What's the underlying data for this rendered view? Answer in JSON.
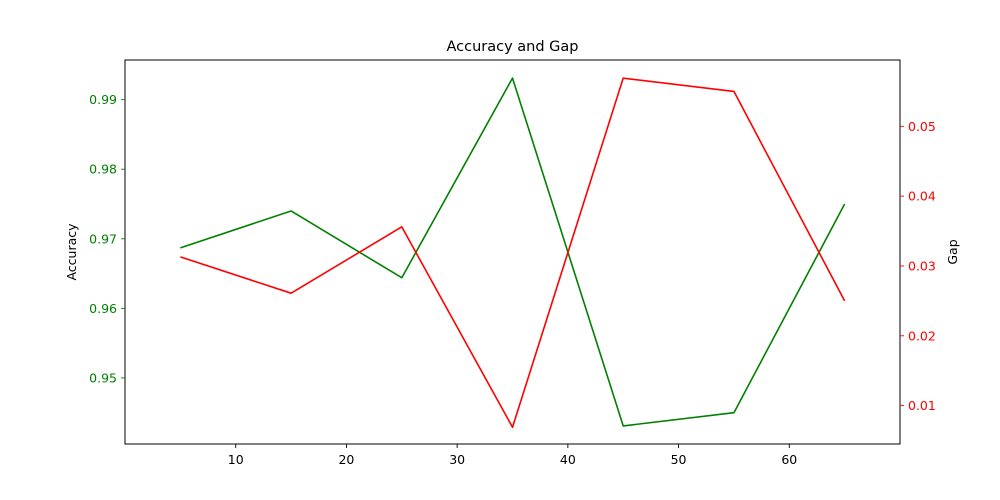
{
  "chart_data": {
    "type": "line",
    "title": "Accuracy and Gap",
    "xlabel": "",
    "x": [
      5,
      15,
      25,
      35,
      45,
      55,
      65
    ],
    "xlim": [
      0,
      70
    ],
    "xticks": [
      10,
      20,
      30,
      40,
      50,
      60
    ],
    "xtick_labels": [
      "10",
      "20",
      "30",
      "40",
      "50",
      "60"
    ],
    "grid": false,
    "legend": "none",
    "y_left": {
      "label": "Accuracy",
      "color": "#008000",
      "lim": [
        0.9405,
        0.9957
      ],
      "ticks": [
        0.95,
        0.96,
        0.97,
        0.98,
        0.99
      ],
      "tick_labels": [
        "0.95",
        "0.96",
        "0.97",
        "0.98",
        "0.99"
      ]
    },
    "y_right": {
      "label": "Gap",
      "color": "#ff0000",
      "lim": [
        0.0045,
        0.0595
      ],
      "ticks": [
        0.01,
        0.02,
        0.03,
        0.04,
        0.05
      ],
      "tick_labels": [
        "0.01",
        "0.02",
        "0.03",
        "0.04",
        "0.05"
      ]
    },
    "series": [
      {
        "axis": "left",
        "color": "#008000",
        "values": [
          0.9687,
          0.974,
          0.9644,
          0.9931,
          0.9431,
          0.945,
          0.975
        ]
      },
      {
        "axis": "right",
        "color": "#ff0000",
        "values": [
          0.0313,
          0.0261,
          0.0356,
          0.0069,
          0.0569,
          0.055,
          0.025
        ]
      }
    ]
  }
}
